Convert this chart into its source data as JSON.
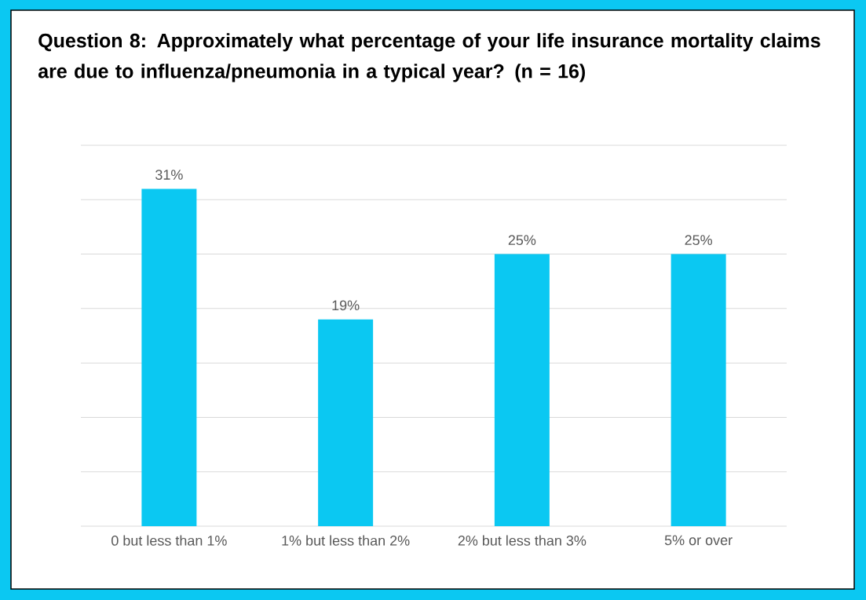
{
  "chart_data": {
    "type": "bar",
    "title": "Question 8: Approximately what percentage of your life insurance mortality claims are due to influenza/pneumonia in a typical year? (n = 16)",
    "categories": [
      "0 but less than 1%",
      "1% but less than 2%",
      "2% but less than 3%",
      "5% or over"
    ],
    "values": [
      31,
      19,
      25,
      25
    ],
    "value_labels": [
      "31%",
      "19%",
      "25%",
      "25%"
    ],
    "color": "#0bc8f2",
    "ylim": [
      0,
      35
    ],
    "yticks": [
      {
        "value": 0,
        "label": null
      },
      {
        "value": 5,
        "label": null
      },
      {
        "value": 10,
        "label": null
      },
      {
        "value": 15,
        "label": null
      },
      {
        "value": 20,
        "label": null
      },
      {
        "value": 25,
        "label": null
      },
      {
        "value": 30,
        "label": null
      },
      {
        "value": 35,
        "label": null
      }
    ],
    "grid": "y",
    "tick_labels": "x"
  }
}
